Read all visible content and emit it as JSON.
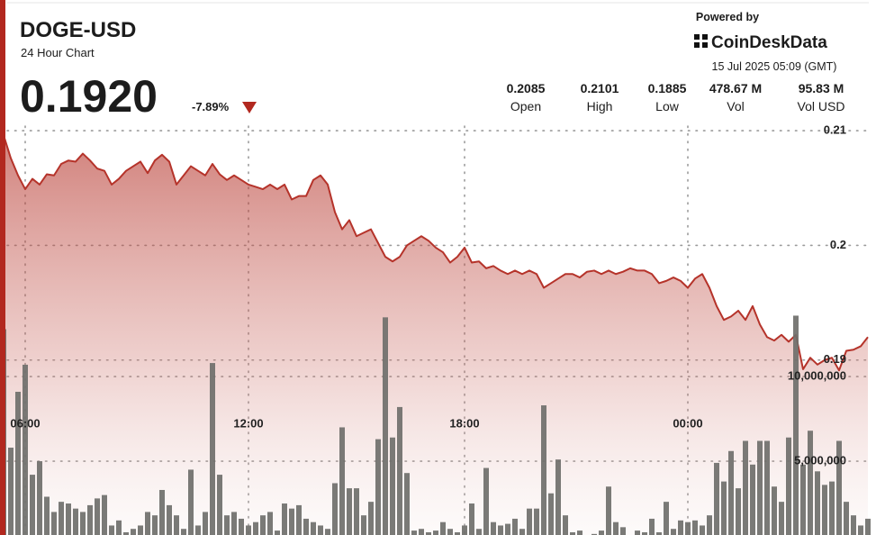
{
  "chart_data": {
    "type": "line",
    "title": "DOGE-USD",
    "subtitle": "24 Hour Chart",
    "last_price": "0.1920",
    "change": "-7.89%",
    "powered_by": "Powered by",
    "brand": "CoinDeskData",
    "timestamp": "15 Jul 2025 05:09 (GMT)",
    "stats": [
      {
        "value": "0.2085",
        "label": "Open"
      },
      {
        "value": "0.2101",
        "label": "High"
      },
      {
        "value": "0.1885",
        "label": "Low"
      },
      {
        "value": "478.67 M",
        "label": "Vol"
      },
      {
        "value": "95.83 M",
        "label": "Vol USD"
      }
    ],
    "categories": [
      null,
      null,
      null,
      "06:00",
      null,
      null,
      null,
      null,
      null,
      null,
      null,
      null,
      null,
      null,
      null,
      null,
      null,
      null,
      null,
      null,
      null,
      null,
      null,
      null,
      null,
      null,
      null,
      null,
      null,
      null,
      null,
      null,
      null,
      null,
      "12:00",
      null,
      null,
      null,
      null,
      null,
      null,
      null,
      null,
      null,
      null,
      null,
      null,
      null,
      null,
      null,
      null,
      null,
      null,
      null,
      null,
      null,
      null,
      null,
      null,
      null,
      null,
      null,
      null,
      null,
      "18:00",
      null,
      null,
      null,
      null,
      null,
      null,
      null,
      null,
      null,
      null,
      null,
      null,
      null,
      null,
      null,
      null,
      null,
      null,
      null,
      null,
      null,
      null,
      null,
      null,
      null,
      null,
      null,
      null,
      null,
      null,
      "00:00",
      null,
      null,
      null,
      null,
      null,
      null,
      null,
      null,
      null,
      null,
      null,
      null,
      null,
      null,
      null,
      null,
      null,
      null,
      null,
      null,
      null,
      null,
      null,
      null,
      null
    ],
    "series": [
      {
        "name": "Price",
        "color": "#b5332a",
        "values": [
          0.2096,
          0.2076,
          0.2061,
          0.2049,
          0.2058,
          0.2053,
          0.2062,
          0.2061,
          0.2071,
          0.2074,
          0.2073,
          0.208,
          0.2074,
          0.2067,
          0.2065,
          0.2053,
          0.2058,
          0.2065,
          0.2069,
          0.2073,
          0.2063,
          0.2074,
          0.2079,
          0.2073,
          0.2053,
          0.2061,
          0.2069,
          0.2065,
          0.2061,
          0.2071,
          0.2062,
          0.2057,
          0.2061,
          0.2057,
          0.2053,
          0.2051,
          0.2049,
          0.2053,
          0.2049,
          0.2053,
          0.204,
          0.2043,
          0.2043,
          0.2057,
          0.2061,
          0.2053,
          0.2029,
          0.2014,
          0.2022,
          0.2008,
          0.2011,
          0.2014,
          0.2002,
          0.199,
          0.1986,
          0.199,
          0.2,
          0.2004,
          0.2008,
          0.2004,
          0.1998,
          0.1994,
          0.1985,
          0.199,
          0.1998,
          0.1985,
          0.1986,
          0.198,
          0.1982,
          0.1978,
          0.1975,
          0.1978,
          0.1975,
          0.1978,
          0.1975,
          0.1963,
          0.1967,
          0.1971,
          0.1975,
          0.1975,
          0.1972,
          0.1977,
          0.1978,
          0.1975,
          0.1978,
          0.1975,
          0.1977,
          0.198,
          0.1978,
          0.1978,
          0.1975,
          0.1967,
          0.1969,
          0.1972,
          0.1969,
          0.1963,
          0.1971,
          0.1975,
          0.1963,
          0.1947,
          0.1935,
          0.1938,
          0.1943,
          0.1935,
          0.1947,
          0.1931,
          0.192,
          0.1917,
          0.1922,
          0.1916,
          0.1922,
          0.1892,
          0.1902,
          0.1896,
          0.19,
          0.1902,
          0.1891,
          0.1908,
          0.1909,
          0.1912,
          0.192
        ]
      },
      {
        "name": "Volume",
        "color": "#6f6f6b",
        "axis": "y2",
        "values": [
          12800000,
          5800000,
          9100000,
          10700000,
          4200000,
          5000000,
          2900000,
          2000000,
          2600000,
          2500000,
          2200000,
          2000000,
          2400000,
          2800000,
          3000000,
          1200000,
          1500000,
          800000,
          1000000,
          1200000,
          2000000,
          1800000,
          3300000,
          2400000,
          1800000,
          1000000,
          4500000,
          1200000,
          2000000,
          10800000,
          4200000,
          1800000,
          2000000,
          1600000,
          1200000,
          1400000,
          1800000,
          2000000,
          900000,
          2500000,
          2200000,
          2400000,
          1600000,
          1400000,
          1200000,
          1000000,
          3700000,
          7000000,
          3400000,
          3400000,
          1800000,
          2600000,
          6300000,
          13500000,
          6400000,
          8200000,
          4300000,
          900000,
          1000000,
          800000,
          900000,
          1400000,
          1000000,
          800000,
          1200000,
          2500000,
          1000000,
          4600000,
          1400000,
          1200000,
          1300000,
          1600000,
          1000000,
          2200000,
          2200000,
          8300000,
          3100000,
          5100000,
          1800000,
          800000,
          900000,
          600000,
          700000,
          900000,
          3500000,
          1400000,
          1100000,
          600000,
          900000,
          800000,
          1600000,
          800000,
          2600000,
          1000000,
          1500000,
          1400000,
          1500000,
          1200000,
          1800000,
          4900000,
          3800000,
          5600000,
          3400000,
          6200000,
          4800000,
          6200000,
          6200000,
          3500000,
          2600000,
          6400000,
          13600000,
          4800000,
          6800000,
          4400000,
          3600000,
          3800000,
          6200000,
          2600000,
          1800000,
          1200000,
          1600000
        ]
      }
    ],
    "ylim": [
      0.1738,
      0.2104
    ],
    "yticks": [
      0.19,
      0.2,
      0.21
    ],
    "y2lim": [
      0,
      24800000
    ],
    "y2ticks": [
      {
        "value": 5000000,
        "label": "5,000,000"
      },
      {
        "value": 10000000,
        "label": "10,000,000"
      }
    ],
    "grid": true
  }
}
